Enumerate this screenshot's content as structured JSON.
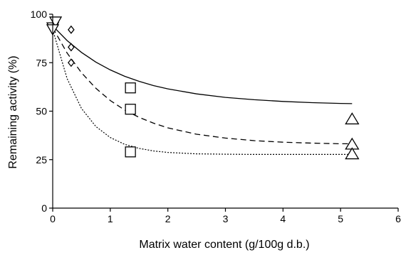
{
  "chart_data": {
    "type": "scatter",
    "xlabel": "Matrix water content (g/100g d.b.)",
    "ylabel": "Remaining activity (%)",
    "xlim": [
      0,
      6
    ],
    "ylim": [
      0,
      100
    ],
    "xticks": [
      0,
      1,
      2,
      3,
      4,
      5,
      6
    ],
    "yticks": [
      0,
      25,
      50,
      75,
      100
    ],
    "xtick_labels": [
      "0",
      "1",
      "2",
      "3",
      "4",
      "5",
      "6"
    ],
    "ytick_labels": [
      "0",
      "25",
      "50",
      "75",
      "100"
    ],
    "grid": false,
    "legend": "none",
    "points": [
      {
        "marker": "triangle-down",
        "x": 0.0,
        "y": 93
      },
      {
        "marker": "triangle-down",
        "x": 0.05,
        "y": 96
      },
      {
        "marker": "triangle-down",
        "x": 0.0,
        "y": 92
      },
      {
        "marker": "diamond",
        "x": 0.32,
        "y": 92
      },
      {
        "marker": "diamond",
        "x": 0.32,
        "y": 83
      },
      {
        "marker": "diamond",
        "x": 0.32,
        "y": 75
      },
      {
        "marker": "square",
        "x": 1.35,
        "y": 62
      },
      {
        "marker": "square",
        "x": 1.35,
        "y": 51
      },
      {
        "marker": "square",
        "x": 1.35,
        "y": 29
      },
      {
        "marker": "triangle-up",
        "x": 5.2,
        "y": 46
      },
      {
        "marker": "triangle-up",
        "x": 5.2,
        "y": 33
      },
      {
        "marker": "triangle-up",
        "x": 5.2,
        "y": 28
      }
    ],
    "curves": [
      {
        "style": "solid",
        "x": [
          0,
          0.25,
          0.5,
          0.75,
          1,
          1.25,
          1.5,
          1.75,
          2,
          2.5,
          3,
          3.5,
          4,
          4.5,
          5,
          5.2
        ],
        "y": [
          94,
          86.4,
          80.3,
          75.3,
          71.3,
          68,
          65.4,
          63.2,
          61.5,
          58.9,
          57.1,
          55.9,
          55,
          54.4,
          54,
          53.9
        ]
      },
      {
        "style": "dashed",
        "x": [
          0,
          0.25,
          0.5,
          0.75,
          1,
          1.25,
          1.5,
          1.75,
          2,
          2.5,
          3,
          3.5,
          4,
          4.5,
          5,
          5.2
        ],
        "y": [
          93,
          80,
          69.8,
          61.8,
          55.5,
          50.6,
          46.8,
          43.8,
          41.4,
          38.1,
          36.1,
          34.8,
          34,
          33.5,
          33.2,
          33.2
        ]
      },
      {
        "style": "dotted",
        "x": [
          0,
          0.25,
          0.5,
          0.75,
          1,
          1.25,
          1.5,
          1.75,
          2,
          2.5,
          3,
          3.5,
          4,
          4.5,
          5,
          5.2
        ],
        "y": [
          92,
          66.8,
          51.4,
          42.1,
          36.4,
          32.9,
          30.8,
          29.5,
          28.7,
          28,
          27.8,
          27.7,
          27.7,
          27.7,
          27.7,
          27.7
        ]
      }
    ]
  }
}
